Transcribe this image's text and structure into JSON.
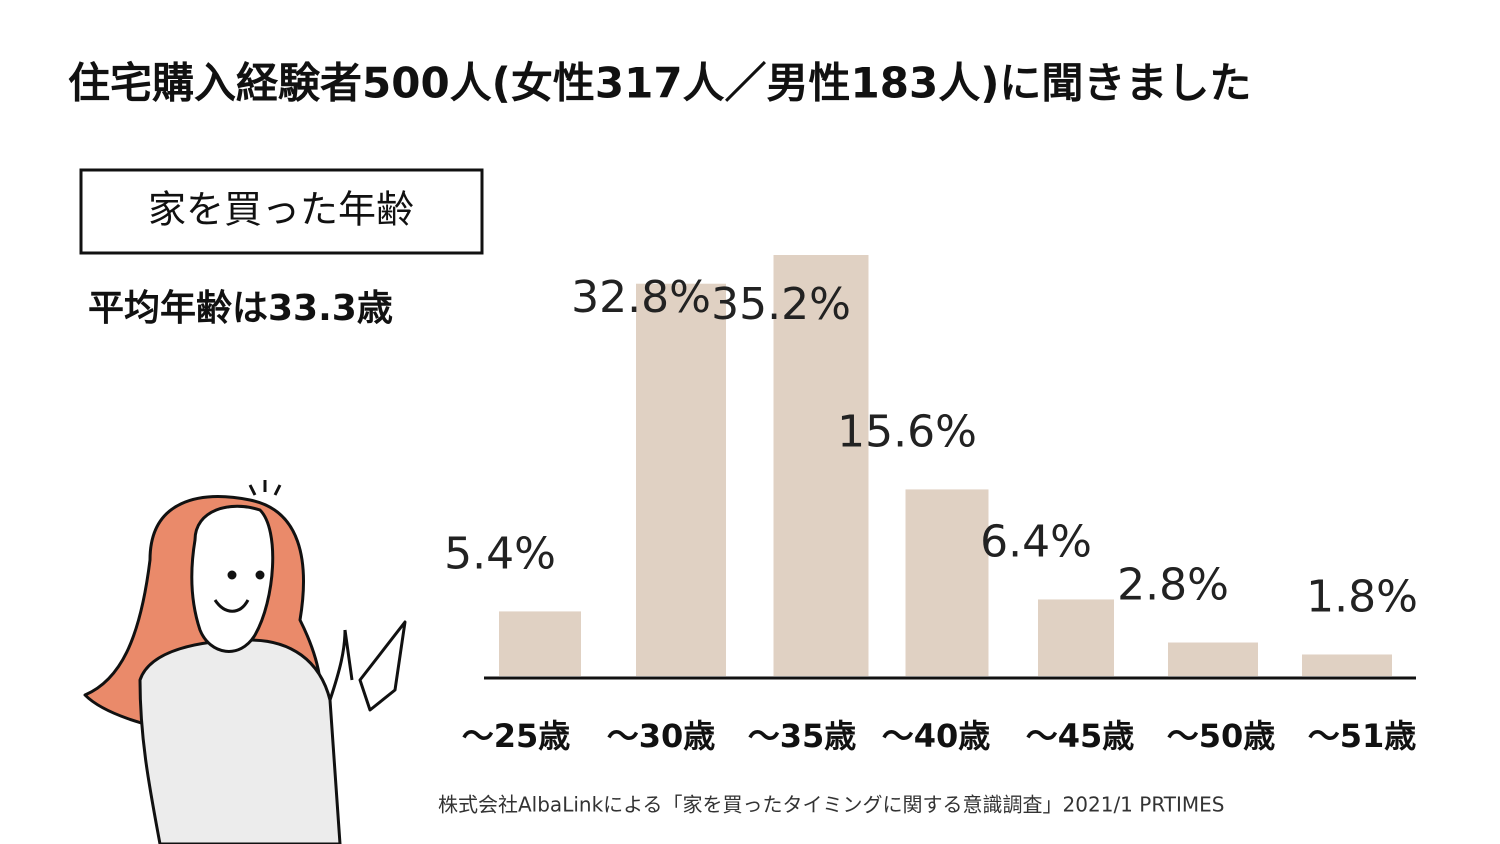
{
  "chart_data": {
    "type": "bar",
    "title": "住宅購入経験者500人(女性317人／男性183人)に聞きました",
    "subtitle": "家を買った年齢",
    "annotation": "平均年齢は33.3歳",
    "source": "株式会社AlbaLinkによる「家を買ったタイミングに関する意識調査」2021/1  PRTIMES",
    "categories": [
      "～25歳",
      "～30歳",
      "～35歳",
      "～40歳",
      "～45歳",
      "～50歳",
      "～51歳"
    ],
    "values": [
      5.4,
      32.8,
      35.2,
      15.6,
      6.4,
      2.8,
      1.8
    ],
    "value_labels": [
      "5.4%",
      "32.8%",
      "35.2%",
      "15.6%",
      "6.4%",
      "2.8%",
      "1.8%"
    ],
    "color": "#e0d1c3"
  }
}
